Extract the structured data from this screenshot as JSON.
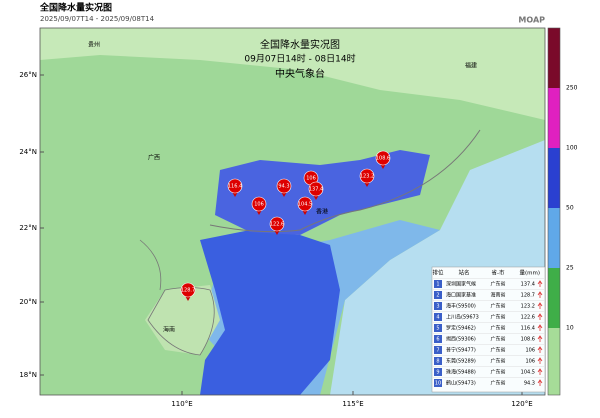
{
  "header": {
    "title": "全国降水量实况图",
    "period": "2025/09/07T14 - 2025/09/08T14",
    "brand": "MOAP"
  },
  "map": {
    "title": "全国降水量实况图",
    "time": "09月07日14时 - 08日14时",
    "source": "中央气象台",
    "lat_labels": [
      "26°N",
      "24°N",
      "22°N",
      "20°N",
      "18°N"
    ],
    "lon_labels": [
      "110°E",
      "115°E",
      "120°E"
    ],
    "places": [
      "贵州",
      "广西",
      "福建",
      "海南",
      "香港"
    ]
  },
  "legend": {
    "labels": [
      250,
      100,
      50,
      25,
      10
    ]
  },
  "table": {
    "columns": [
      "排位",
      "站名",
      "省-市",
      "量(mm)"
    ],
    "rows": [
      [
        "1",
        "深圳国家气候",
        "广东省",
        "137.4"
      ],
      [
        "2",
        "海口国家基准",
        "海南省",
        "128.7"
      ],
      [
        "3",
        "海丰(59500)",
        "广东省",
        "123.2"
      ],
      [
        "4",
        "上川岛(59673",
        "广东省",
        "122.6"
      ],
      [
        "5",
        "罗定(59462)",
        "广东省",
        "116.4"
      ],
      [
        "6",
        "揭西(59306)",
        "广东省",
        "108.6"
      ],
      [
        "7",
        "普宁(59477)",
        "广东省",
        "106"
      ],
      [
        "8",
        "东莞(59289)",
        "广东省",
        "106"
      ],
      [
        "9",
        "珠海(59488)",
        "广东省",
        "104.5"
      ],
      [
        "10",
        "鹤山(59473)",
        "广东省",
        "94.3"
      ]
    ]
  }
}
